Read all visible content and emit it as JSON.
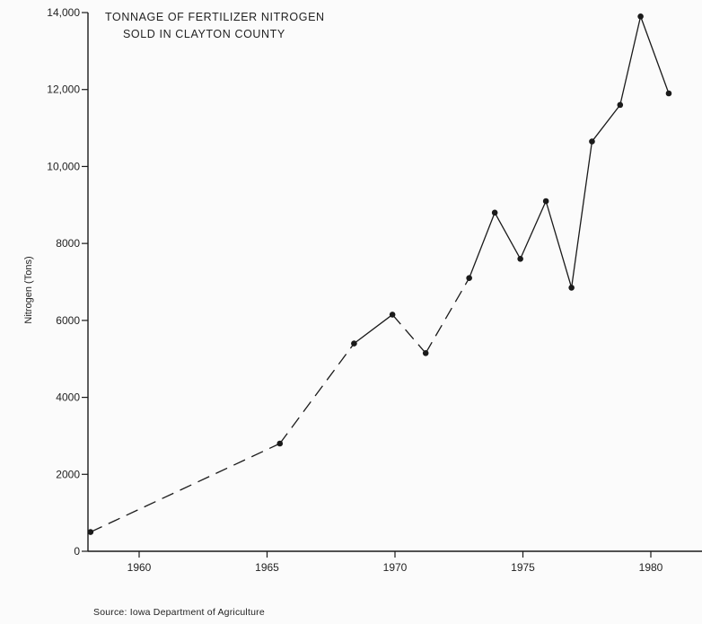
{
  "chart_data": {
    "type": "line",
    "title_lines": [
      "TONNAGE OF FERTILIZER NITROGEN",
      "SOLD IN CLAYTON COUNTY"
    ],
    "xlabel": "",
    "ylabel": "Nitrogen (Tons)",
    "xlim": [
      1958,
      1982
    ],
    "ylim": [
      0,
      14000
    ],
    "x_ticks": [
      1960,
      1965,
      1970,
      1975,
      1980
    ],
    "x_tick_labels": [
      "1960",
      "1965",
      "1970",
      "1975",
      "1980"
    ],
    "y_ticks": [
      0,
      2000,
      4000,
      6000,
      8000,
      10000,
      12000,
      14000
    ],
    "y_tick_labels": [
      "0",
      "2000",
      "4000",
      "6000",
      "8000",
      "10,000",
      "12,000",
      "14,000"
    ],
    "grid": false,
    "legend": "none",
    "series": [
      {
        "style": "dashed then solid",
        "points": [
          {
            "x": 1958.1,
            "y": 500,
            "segment": "dashed"
          },
          {
            "x": 1965.5,
            "y": 2800,
            "segment": "dashed"
          },
          {
            "x": 1968.4,
            "y": 5400,
            "segment": "dashed"
          },
          {
            "x": 1969.9,
            "y": 6150,
            "segment": "solid"
          },
          {
            "x": 1971.2,
            "y": 5150,
            "segment": "dashed"
          },
          {
            "x": 1972.9,
            "y": 7100,
            "segment": "dashed"
          },
          {
            "x": 1973.9,
            "y": 8800,
            "segment": "solid"
          },
          {
            "x": 1974.9,
            "y": 7600,
            "segment": "solid"
          },
          {
            "x": 1975.9,
            "y": 9100,
            "segment": "solid"
          },
          {
            "x": 1976.9,
            "y": 6850,
            "segment": "solid"
          },
          {
            "x": 1977.7,
            "y": 10650,
            "segment": "solid"
          },
          {
            "x": 1978.8,
            "y": 11600,
            "segment": "solid"
          },
          {
            "x": 1979.6,
            "y": 13900,
            "segment": "solid"
          },
          {
            "x": 1980.7,
            "y": 11900,
            "segment": "solid"
          }
        ]
      }
    ],
    "colors": {
      "line": "#1a1a1a",
      "background": "#fbfbfb"
    }
  },
  "source_note": "Source: Iowa Department of Agriculture"
}
